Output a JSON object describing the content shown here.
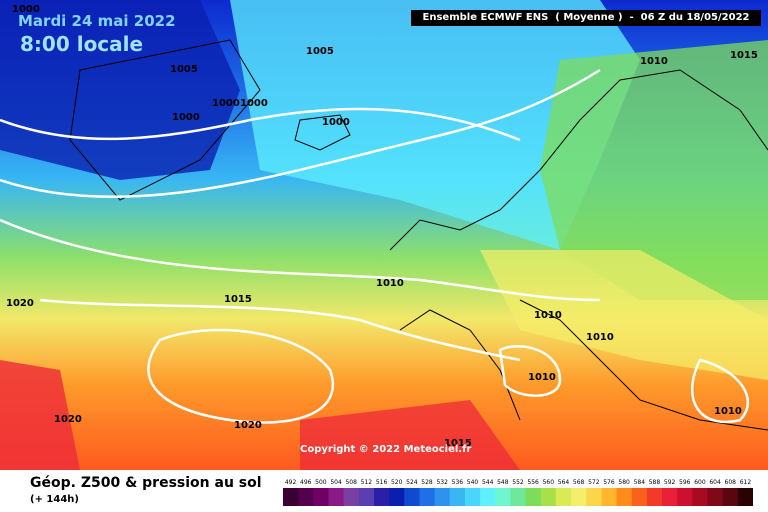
{
  "header": {
    "date": "Mardi 24 mai 2022",
    "local_time": "8:00 locale",
    "model": "Ensemble ECMWF ENS  ( Moyenne )  -  06 Z du 18/05/2022"
  },
  "map": {
    "isobar_labels": [
      "1000",
      "1005",
      "1005",
      "1000",
      "1000",
      "1000",
      "1000",
      "1010",
      "1015",
      "1010",
      "1020",
      "1015",
      "1010",
      "1010",
      "1010",
      "1020",
      "1020",
      "1015",
      "1010"
    ],
    "copyright": "Copyright © 2022 Meteociel.fr",
    "colors": {
      "deep_blue": "#0a1fb0",
      "blue": "#1f6fe6",
      "light_blue": "#3ab6f2",
      "cyan": "#5ef0ff",
      "green": "#7ddc5a",
      "yellow": "#f5ee6a",
      "orange": "#ff8b1a",
      "red": "#ee2a3a"
    }
  },
  "footer": {
    "title": "Géop. Z500 & pression au sol",
    "subtitle": "(+ 144h)",
    "scale": [
      "492",
      "496",
      "500",
      "504",
      "508",
      "512",
      "516",
      "520",
      "524",
      "528",
      "532",
      "536",
      "540",
      "544",
      "548",
      "552",
      "556",
      "560",
      "564",
      "568",
      "572",
      "576",
      "580",
      "584",
      "588",
      "592",
      "596",
      "600",
      "604",
      "608",
      "612"
    ],
    "scale_colors": [
      "#3a0033",
      "#55004d",
      "#6f0066",
      "#8a1a86",
      "#7a3fa3",
      "#5a3fb0",
      "#2a1fa8",
      "#0a1fb0",
      "#0f4ad0",
      "#1f6fe6",
      "#2f93ee",
      "#3ab6f2",
      "#4ad6f8",
      "#5ef0ff",
      "#6ff5d0",
      "#6ee89a",
      "#7ddc5a",
      "#a8e04a",
      "#d8ea54",
      "#f5ee6a",
      "#fcd54a",
      "#ffb52e",
      "#ff8b1a",
      "#fa621c",
      "#f23a2a",
      "#e8203a",
      "#cc1030",
      "#a80a22",
      "#800818",
      "#5a0610",
      "#2a0204"
    ]
  }
}
